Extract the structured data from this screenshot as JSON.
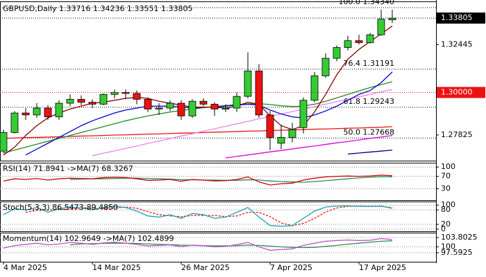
{
  "chart_data": [
    {
      "type": "candlestick",
      "title": "GBPUSD,Daily  1.33716 1.34236 1.33551 1.33805",
      "categories": [
        "4 Mar 2025",
        null,
        null,
        null,
        null,
        null,
        null,
        null,
        "14 Mar 2025",
        null,
        null,
        null,
        null,
        null,
        null,
        null,
        "26 Mar 2025",
        null,
        null,
        null,
        null,
        null,
        null,
        null,
        "7 Apr 2025",
        null,
        null,
        null,
        null,
        null,
        null,
        null,
        "17 Apr 2025",
        null,
        null,
        null
      ],
      "open": [
        1.27,
        1.2795,
        1.2895,
        1.2885,
        1.292,
        1.2875,
        1.2945,
        1.2965,
        1.295,
        1.294,
        1.299,
        1.3,
        1.2995,
        1.2965,
        1.2915,
        1.292,
        1.2945,
        1.288,
        1.2955,
        1.294,
        1.2915,
        1.292,
        1.298,
        1.311,
        1.2885,
        1.274,
        1.277,
        1.282,
        1.296,
        1.3085,
        1.3175,
        1.323,
        1.3265,
        1.3255,
        1.3295,
        1.33716
      ],
      "high": [
        1.281,
        1.2905,
        1.292,
        1.2945,
        1.2935,
        1.296,
        1.299,
        1.2985,
        1.2965,
        1.2995,
        1.3015,
        1.3015,
        1.301,
        1.2975,
        1.2945,
        1.296,
        1.296,
        1.2965,
        1.297,
        1.295,
        1.294,
        1.3,
        1.3205,
        1.3145,
        1.2905,
        1.2835,
        1.2845,
        1.2975,
        1.3105,
        1.32,
        1.324,
        1.329,
        1.3295,
        1.3305,
        1.3424,
        1.34236
      ],
      "low": [
        1.269,
        1.279,
        1.286,
        1.287,
        1.286,
        1.286,
        1.293,
        1.2935,
        1.292,
        1.2935,
        1.297,
        1.2965,
        1.294,
        1.29,
        1.2885,
        1.2905,
        1.286,
        1.287,
        1.293,
        1.288,
        1.29,
        1.29,
        1.297,
        1.287,
        1.2705,
        1.271,
        1.2745,
        1.279,
        1.295,
        1.3075,
        1.316,
        1.3215,
        1.3245,
        1.325,
        1.329,
        1.33551
      ],
      "close": [
        1.2795,
        1.2895,
        1.2885,
        1.292,
        1.2875,
        1.2945,
        1.2965,
        1.295,
        1.294,
        1.299,
        1.3,
        1.2995,
        1.2965,
        1.2915,
        1.292,
        1.2945,
        1.288,
        1.2955,
        1.294,
        1.2915,
        1.292,
        1.298,
        1.311,
        1.2885,
        1.277,
        1.277,
        1.281,
        1.296,
        1.3085,
        1.3175,
        1.323,
        1.3265,
        1.3255,
        1.3295,
        1.3375,
        1.33805
      ],
      "up_color": "#33cc33",
      "down_color": "#ee1111",
      "series": [
        {
          "color": "#ee1111",
          "values": [
            1.2765,
            1.2767,
            1.2769,
            1.277,
            1.2772,
            1.2773,
            1.2775,
            1.2777,
            1.2778,
            1.278,
            1.2782,
            1.2783,
            1.2785,
            1.2787,
            1.2788,
            1.279,
            1.2792,
            1.2793,
            1.2795,
            1.2797,
            1.2798,
            1.28,
            1.2802,
            1.2803,
            1.2805,
            1.2807,
            1.2808,
            1.281,
            1.2812,
            1.2813,
            1.2815,
            1.2817,
            1.2818,
            1.282,
            1.2822,
            1.2825
          ]
        },
        {
          "color": "#ee82ee",
          "values": [
            null,
            null,
            null,
            null,
            null,
            null,
            null,
            null,
            1.2676,
            1.2689,
            1.2701,
            1.2714,
            1.2726,
            1.2739,
            1.2751,
            1.2764,
            1.2777,
            1.2789,
            1.2802,
            1.2814,
            1.2827,
            1.2839,
            1.2852,
            1.2865,
            1.2877,
            1.289,
            1.2902,
            1.2915,
            1.2927,
            1.294,
            1.2953,
            1.2965,
            1.2978,
            1.299,
            1.3003,
            1.3015
          ]
        },
        {
          "color": "#dd00dd",
          "values": [
            null,
            null,
            null,
            null,
            null,
            null,
            null,
            null,
            null,
            null,
            null,
            null,
            null,
            null,
            null,
            null,
            null,
            null,
            null,
            null,
            1.2665,
            1.2673,
            1.268,
            1.2688,
            1.2696,
            1.2703,
            1.2711,
            1.2719,
            1.2726,
            1.2734,
            1.2742,
            1.2749,
            1.2757,
            1.2765,
            1.2772,
            1.278
          ]
        },
        {
          "color": "#000080",
          "values": [
            null,
            null,
            null,
            null,
            null,
            null,
            null,
            null,
            null,
            null,
            null,
            null,
            null,
            null,
            null,
            null,
            null,
            null,
            null,
            null,
            null,
            null,
            null,
            null,
            null,
            null,
            null,
            null,
            null,
            null,
            null,
            1.2685,
            1.269,
            1.2695,
            1.27,
            1.2705
          ]
        },
        {
          "color": "#228b22",
          "values": [
            1.269,
            1.2705,
            1.272,
            1.2735,
            1.275,
            1.2765,
            1.278,
            1.2795,
            1.281,
            1.2825,
            1.284,
            1.2855,
            1.2868,
            1.288,
            1.289,
            1.29,
            1.2908,
            1.2915,
            1.2922,
            1.2928,
            1.2933,
            1.2938,
            1.2942,
            1.2943,
            1.2938,
            1.2932,
            1.2928,
            1.293,
            1.294,
            1.2955,
            1.2972,
            1.299,
            1.3008,
            1.3025,
            1.304,
            1.3055
          ]
        },
        {
          "color": "#0000cd",
          "values": [
            null,
            null,
            1.268,
            1.271,
            1.274,
            1.277,
            1.28,
            1.283,
            1.2855,
            1.2875,
            1.2895,
            1.291,
            1.292,
            1.293,
            1.293,
            1.293,
            1.2925,
            1.292,
            1.2925,
            1.2925,
            1.293,
            1.2935,
            1.294,
            1.2935,
            1.291,
            1.289,
            1.2875,
            1.287,
            1.2885,
            1.2905,
            1.293,
            1.296,
            1.299,
            1.301,
            1.305,
            1.3105
          ]
        },
        {
          "color": "#8b0000",
          "values": [
            1.268,
            1.272,
            1.278,
            1.283,
            1.287,
            1.2895,
            1.2915,
            1.293,
            1.2945,
            1.295,
            1.296,
            1.297,
            1.2975,
            1.297,
            1.2955,
            1.2945,
            1.2935,
            1.2925,
            1.2925,
            1.2925,
            1.292,
            1.293,
            1.295,
            1.294,
            1.288,
            1.283,
            1.281,
            1.283,
            1.29,
            1.299,
            1.309,
            1.317,
            1.322,
            1.326,
            1.33,
            1.334
          ]
        }
      ],
      "levels": [
        {
          "value": 1.3434,
          "label": "100.0 1.34340"
        },
        {
          "value": 1.31191,
          "label": "76.4 1.31191"
        },
        {
          "value": 1.29243,
          "label": "61.8 1.29243"
        },
        {
          "value": 1.27668,
          "label": "50.0 1.27668"
        }
      ],
      "price_tags": [
        {
          "value": 1.33805,
          "color": "#000000"
        },
        {
          "value": 1.3,
          "label": "1.30000",
          "color": "#ee1111"
        }
      ],
      "ylim": [
        1.2651,
        1.3466
      ],
      "yticks": [
        1.32445,
        1.27825
      ]
    },
    {
      "type": "line",
      "title": "RSI(14) 71.8941 ->MA(7) 68.3267",
      "series": [
        {
          "color": "#2e8b57",
          "values": [
            null,
            null,
            null,
            null,
            null,
            null,
            60,
            61,
            62,
            62,
            63,
            64,
            64,
            63,
            62,
            61,
            59,
            59,
            58,
            58,
            57,
            57,
            59,
            58,
            55,
            53,
            52,
            51,
            53,
            56,
            59,
            62,
            65,
            67,
            69,
            68.3267
          ]
        },
        {
          "color": "#cc0000",
          "values": [
            55,
            62,
            60,
            63,
            58,
            62,
            64,
            63,
            62,
            66,
            67,
            66,
            62,
            57,
            58,
            60,
            54,
            60,
            58,
            55,
            56,
            60,
            68,
            52,
            42,
            46,
            48,
            58,
            64,
            68,
            70,
            71,
            70,
            71,
            74,
            71.8941
          ]
        }
      ],
      "ylim": [
        -7,
        114
      ],
      "yticks": [
        30,
        70,
        100
      ]
    },
    {
      "type": "line",
      "title": "Stoch(5,3,3) 86.5473-89.4850",
      "series": [
        {
          "color": "#ee1111",
          "dashed": true,
          "values": [
            null,
            null,
            70,
            78,
            80,
            82,
            82,
            88,
            87,
            86,
            88,
            92,
            87,
            73,
            60,
            55,
            52,
            57,
            57,
            57,
            52,
            55,
            70,
            70,
            52,
            26,
            14,
            24,
            45,
            71,
            88,
            95,
            96,
            95,
            95,
            89.485
          ]
        },
        {
          "color": "#20a0b0",
          "values": [
            60,
            85,
            80,
            90,
            70,
            85,
            92,
            88,
            80,
            90,
            95,
            90,
            75,
            55,
            50,
            60,
            45,
            65,
            60,
            45,
            50,
            70,
            90,
            50,
            15,
            12,
            15,
            45,
            75,
            92,
            96,
            97,
            95,
            94,
            96,
            86.5473
          ]
        }
      ],
      "ylim": [
        -9,
        115
      ],
      "yticks": [
        0,
        20,
        80,
        100
      ]
    },
    {
      "type": "line",
      "title": "Momentum(14) 102.9649 ->MA(7) 102.4899",
      "series": [
        {
          "color": "#2e8b57",
          "values": [
            null,
            null,
            null,
            null,
            null,
            null,
            100.8,
            101.2,
            101.3,
            101.4,
            101.5,
            101.5,
            101.4,
            101.2,
            101.0,
            100.9,
            100.7,
            100.6,
            100.5,
            100.4,
            100.4,
            100.5,
            100.7,
            100.6,
            100.3,
            100.0,
            99.8,
            99.7,
            99.8,
            100.2,
            100.6,
            101.1,
            101.5,
            101.9,
            102.3,
            102.4899
          ]
        },
        {
          "color": "#c050c0",
          "values": [
            99.5,
            100.5,
            101,
            101.5,
            100.8,
            101.2,
            101.8,
            101.5,
            101,
            101.6,
            101.9,
            101.5,
            101.0,
            100.4,
            100.6,
            100.8,
            100.1,
            100.7,
            100.5,
            100.0,
            100.2,
            100.9,
            101.8,
            100.0,
            98.6,
            98.9,
            99.2,
            100.6,
            101.5,
            102.3,
            102.6,
            102.8,
            102.6,
            102.7,
            103.4,
            102.9649
          ]
        }
      ],
      "ylim": [
        93.9,
        105.8
      ],
      "yticks": [
        97.5925,
        100,
        103.8025
      ]
    }
  ]
}
